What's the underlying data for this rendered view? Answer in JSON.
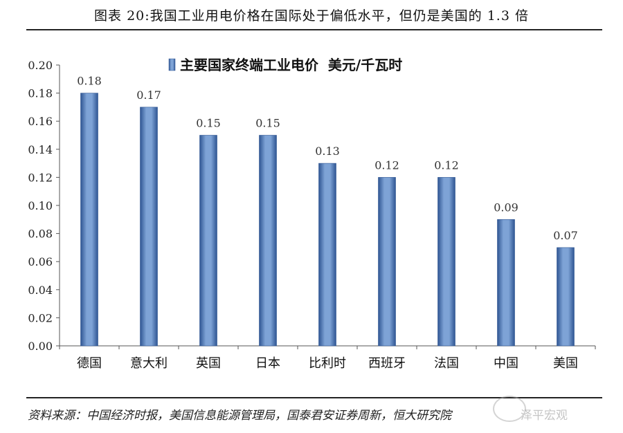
{
  "figure_title": "图表 20:我国工业用电价格在国际处于偏低水平，但仍是美国的 1.3 倍",
  "source_text": "资料来源：中国经济时报，美国信息能源管理局，国泰君安证券周新，恒大研究院",
  "watermark_text": "泽平宏观",
  "chart_data": {
    "type": "bar",
    "title": "",
    "legend": "主要国家终端工业电价  美元/千瓦时",
    "legend_placement": "top",
    "categories": [
      "德国",
      "意大利",
      "英国",
      "日本",
      "比利时",
      "西班牙",
      "法国",
      "中国",
      "美国"
    ],
    "values": [
      0.18,
      0.17,
      0.15,
      0.15,
      0.13,
      0.12,
      0.12,
      0.09,
      0.07
    ],
    "data_labels": [
      "0.18",
      "0.17",
      "0.15",
      "0.15",
      "0.13",
      "0.12",
      "0.12",
      "0.09",
      "0.07"
    ],
    "y_ticks": [
      "0.00",
      "0.02",
      "0.04",
      "0.06",
      "0.08",
      "0.10",
      "0.12",
      "0.14",
      "0.16",
      "0.18",
      "0.20"
    ],
    "ylim": [
      0,
      0.2
    ],
    "grid": false,
    "bar_color": "#5b86c4",
    "bar_edge_color": "#2f5592"
  }
}
